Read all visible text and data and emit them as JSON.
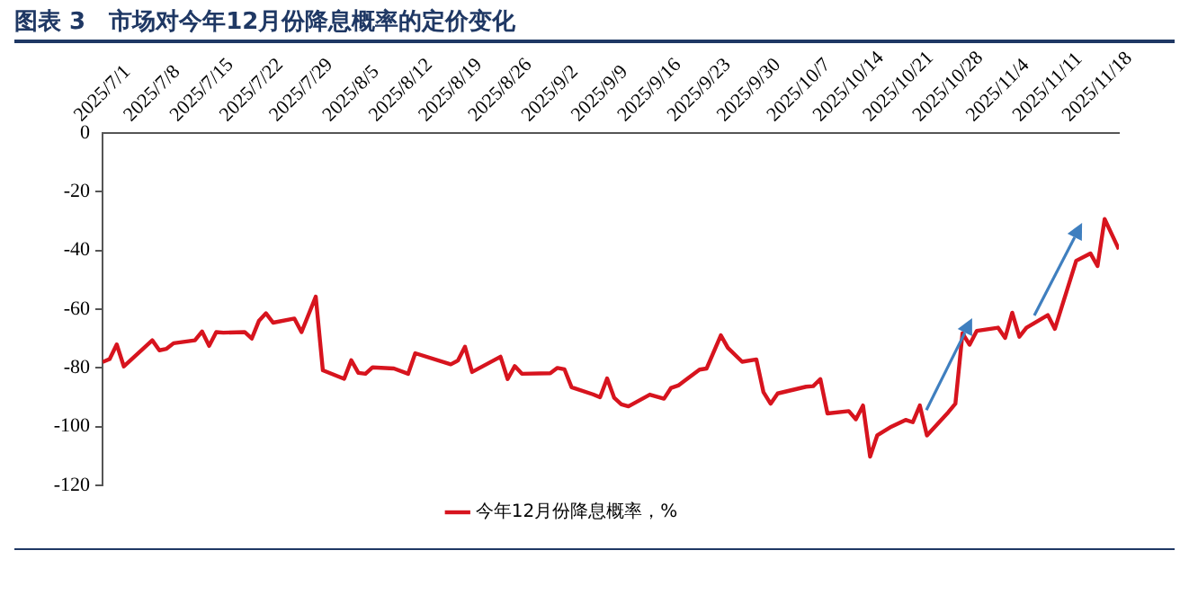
{
  "chart_data": {
    "type": "line",
    "title": "图表 3　市场对今年12月份降息概率的定价变化",
    "x": [
      "2025-07-01",
      "2025-07-02",
      "2025-07-03",
      "2025-07-04",
      "2025-07-08",
      "2025-07-09",
      "2025-07-10",
      "2025-07-11",
      "2025-07-14",
      "2025-07-15",
      "2025-07-16",
      "2025-07-17",
      "2025-07-18",
      "2025-07-21",
      "2025-07-22",
      "2025-07-23",
      "2025-07-24",
      "2025-07-25",
      "2025-07-28",
      "2025-07-29",
      "2025-07-31",
      "2025-08-01",
      "2025-08-04",
      "2025-08-05",
      "2025-08-06",
      "2025-08-07",
      "2025-08-08",
      "2025-08-11",
      "2025-08-13",
      "2025-08-14",
      "2025-08-19",
      "2025-08-20",
      "2025-08-21",
      "2025-08-22",
      "2025-08-26",
      "2025-08-27",
      "2025-08-28",
      "2025-08-29",
      "2025-09-02",
      "2025-09-03",
      "2025-09-04",
      "2025-09-05",
      "2025-09-08",
      "2025-09-09",
      "2025-09-10",
      "2025-09-11",
      "2025-09-12",
      "2025-09-13",
      "2025-09-16",
      "2025-09-18",
      "2025-09-19",
      "2025-09-20",
      "2025-09-23",
      "2025-09-24",
      "2025-09-26",
      "2025-09-27",
      "2025-09-29",
      "2025-10-01",
      "2025-10-02",
      "2025-10-03",
      "2025-10-04",
      "2025-10-08",
      "2025-10-09",
      "2025-10-10",
      "2025-10-11",
      "2025-10-14",
      "2025-10-15",
      "2025-10-16",
      "2025-10-17",
      "2025-10-18",
      "2025-10-20",
      "2025-10-22",
      "2025-10-23",
      "2025-10-24",
      "2025-10-25",
      "2025-10-28",
      "2025-10-29",
      "2025-10-30",
      "2025-10-31",
      "2025-11-01",
      "2025-11-04",
      "2025-11-05",
      "2025-11-06",
      "2025-11-07",
      "2025-11-08",
      "2025-11-11",
      "2025-11-12",
      "2025-11-15",
      "2025-11-17",
      "2025-11-18",
      "2025-11-19",
      "2025-11-21"
    ],
    "series": [
      {
        "name": "今年12月份降息概率，%",
        "color": "#d7141e",
        "values": [
          -78,
          -77,
          -72,
          -79.5,
          -70.6,
          -74,
          -73.5,
          -71.6,
          -70.6,
          -67.6,
          -72.5,
          -67.8,
          -68,
          -67.8,
          -70,
          -64,
          -61.4,
          -64.6,
          -63.2,
          -67.8,
          -55.7,
          -80.8,
          -83.7,
          -77.4,
          -81.7,
          -82,
          -79.8,
          -80.2,
          -82,
          -75,
          -78.8,
          -77.5,
          -72.8,
          -81.4,
          -76.2,
          -83.8,
          -79.4,
          -82,
          -81.8,
          -80,
          -80.5,
          -86.6,
          -89,
          -90,
          -83.6,
          -90.2,
          -92.4,
          -93.1,
          -89.1,
          -90.5,
          -86.8,
          -86,
          -80.6,
          -80.2,
          -68.9,
          -73.2,
          -77.9,
          -77.1,
          -88.3,
          -92.2,
          -88.7,
          -86.4,
          -86.2,
          -83.8,
          -95.5,
          -94.7,
          -97.5,
          -92.8,
          -110.2,
          -103,
          -100,
          -97.7,
          -98.5,
          -92.8,
          -103,
          -95.1,
          -92.2,
          -68.2,
          -72.1,
          -67.4,
          -66.3,
          -69.8,
          -61.2,
          -69.4,
          -66.3,
          -62,
          -66.7,
          -43.5,
          -41,
          -45.3,
          -29.3,
          -39.6
        ]
      }
    ],
    "xlim": [
      "2025-07-01",
      "2025-11-21"
    ],
    "xticks": [
      {
        "value": "2025-07-01",
        "label": "2025/7/1"
      },
      {
        "value": "2025-07-08",
        "label": "2025/7/8"
      },
      {
        "value": "2025-07-15",
        "label": "2025/7/15"
      },
      {
        "value": "2025-07-22",
        "label": "2025/7/22"
      },
      {
        "value": "2025-07-29",
        "label": "2025/7/29"
      },
      {
        "value": "2025-08-05",
        "label": "2025/8/5"
      },
      {
        "value": "2025-08-12",
        "label": "2025/8/12"
      },
      {
        "value": "2025-08-19",
        "label": "2025/8/19"
      },
      {
        "value": "2025-08-26",
        "label": "2025/8/26"
      },
      {
        "value": "2025-09-02",
        "label": "2025/9/2"
      },
      {
        "value": "2025-09-09",
        "label": "2025/9/9"
      },
      {
        "value": "2025-09-16",
        "label": "2025/9/16"
      },
      {
        "value": "2025-09-23",
        "label": "2025/9/23"
      },
      {
        "value": "2025-09-30",
        "label": "2025/9/30"
      },
      {
        "value": "2025-10-07",
        "label": "2025/10/7"
      },
      {
        "value": "2025-10-14",
        "label": "2025/10/14"
      },
      {
        "value": "2025-10-21",
        "label": "2025/10/21"
      },
      {
        "value": "2025-10-28",
        "label": "2025/10/28"
      },
      {
        "value": "2025-11-04",
        "label": "2025/11/4"
      },
      {
        "value": "2025-11-11",
        "label": "2025/11/11"
      },
      {
        "value": "2025-11-18",
        "label": "2025/11/18"
      }
    ],
    "ylim": [
      -120,
      0
    ],
    "yticks": [
      -120,
      -100,
      -80,
      -60,
      -40,
      -20,
      0
    ],
    "grid": false,
    "legend": "bottom",
    "marker": "none",
    "line_style": "solid"
  }
}
